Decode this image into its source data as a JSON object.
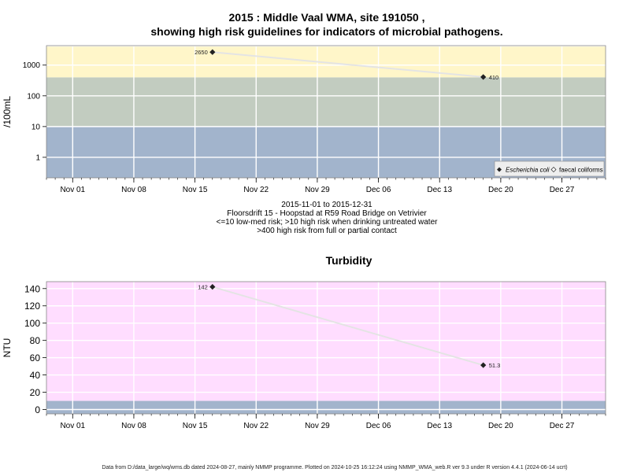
{
  "title_line1": "2015 : Middle Vaal WMA, site 191050 ,",
  "title_line2": "showing high risk guidelines for indicators of microbial pathogens.",
  "caption": [
    "2015-11-01 to 2015-12-31",
    "Floorsdrift 15 - Hoopstad at R59 Road Bridge on Vetrivier",
    "<=10 low-med risk; >10 high risk when drinking untreated water",
    ">400 high risk from full or partial contact"
  ],
  "footer": "Data from D:/data_large/wq/wms.db dated 2024-08-27, mainly NMMP programme. Plotted on 2024-10-25 16:12:24 using NMMP_WMA_web.R ver 9.3 under R version 4.4.1 (2024-06-14 ucrt)",
  "chart_data": [
    {
      "type": "scatter",
      "title": "",
      "xlabel": "",
      "ylabel": "/100mL",
      "y_scale": "log",
      "xlim": [
        "2015-10-29",
        "2016-01-01"
      ],
      "x_ticks": [
        "Nov 01",
        "Nov 08",
        "Nov 15",
        "Nov 22",
        "Nov 29",
        "Dec 06",
        "Dec 13",
        "Dec 20",
        "Dec 27"
      ],
      "y_ticks": [
        "1",
        "10",
        "100",
        "1000"
      ],
      "grid": true,
      "bands": [
        {
          "from": 0,
          "to": 10,
          "color": "#a2b4cc",
          "label": "<=10 low-med risk"
        },
        {
          "from": 10,
          "to": 400,
          "color": "#c2ccc0",
          "label": ">10 high risk when drinking untreated water"
        },
        {
          "from": 400,
          "to": 4000,
          "color": "#fff6c9",
          "label": ">400 high risk from full or partial contact"
        }
      ],
      "series": [
        {
          "name": "Escherichia coli",
          "marker": "filled-diamond",
          "x": [
            "2015-11-17",
            "2015-12-18"
          ],
          "y": [
            2650,
            410
          ],
          "labels": [
            "2650",
            "410"
          ]
        },
        {
          "name": "faecal coliforms",
          "marker": "open-diamond",
          "x": [],
          "y": []
        }
      ],
      "legend_placement": "bottom-right",
      "colors": {
        "points": "#222222",
        "connector": "#e6e6e6"
      }
    },
    {
      "type": "scatter",
      "title": "Turbidity",
      "xlabel": "",
      "ylabel": "NTU",
      "xlim": [
        "2015-10-29",
        "2016-01-01"
      ],
      "ylim": [
        -5,
        148
      ],
      "x_ticks": [
        "Nov 01",
        "Nov 08",
        "Nov 15",
        "Nov 22",
        "Nov 29",
        "Dec 06",
        "Dec 13",
        "Dec 20",
        "Dec 27"
      ],
      "y_ticks": [
        "0",
        "20",
        "40",
        "60",
        "80",
        "100",
        "120",
        "140"
      ],
      "grid": true,
      "bands": [
        {
          "from": -5,
          "to": 10,
          "color": "#a2b4cc"
        },
        {
          "from": 10,
          "to": 148,
          "color": "#ffddff"
        }
      ],
      "series": [
        {
          "name": "",
          "marker": "filled-diamond",
          "x": [
            "2015-11-17",
            "2015-12-18"
          ],
          "y": [
            142,
            51.3
          ],
          "labels": [
            "142",
            "51.3"
          ]
        }
      ],
      "colors": {
        "points": "#222222",
        "connector": "#e6e6e6"
      }
    }
  ]
}
